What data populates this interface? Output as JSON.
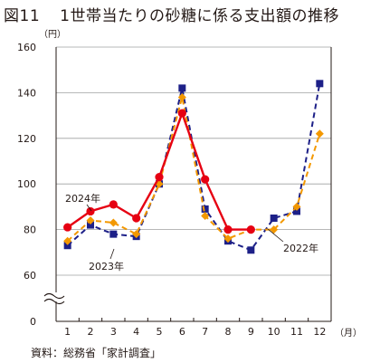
{
  "title": {
    "prefix": "図11",
    "text": "1世帯当たりの砂糖に係る支出額の推移"
  },
  "source": "資料：総務省「家計調査」",
  "chart_data": {
    "type": "line",
    "x": [
      "1",
      "2",
      "3",
      "4",
      "5",
      "6",
      "7",
      "8",
      "9",
      "10",
      "11",
      "12"
    ],
    "yunit": "（円）",
    "xunit": "（月）",
    "ylim": [
      0,
      160
    ],
    "yticks": [
      "0",
      "60",
      "80",
      "100",
      "120",
      "140",
      "160"
    ],
    "axis_break": true,
    "grid": true,
    "series": [
      {
        "name": "2024年",
        "color": "#e60012",
        "marker": "circle",
        "dash": "solid",
        "values": [
          81,
          88,
          91,
          85,
          103,
          131,
          102,
          80,
          80,
          null,
          null,
          null
        ]
      },
      {
        "name": "2023年",
        "color": "#f39800",
        "marker": "diamond",
        "dash": "dashed",
        "values": [
          75,
          84,
          83,
          78,
          100,
          138,
          86,
          76,
          80,
          80,
          90,
          122
        ]
      },
      {
        "name": "2022年",
        "color": "#1d2088",
        "marker": "square",
        "dash": "dashed",
        "values": [
          73,
          82,
          78,
          77,
          100,
          142,
          89,
          75,
          71,
          85,
          88,
          144
        ]
      }
    ]
  }
}
